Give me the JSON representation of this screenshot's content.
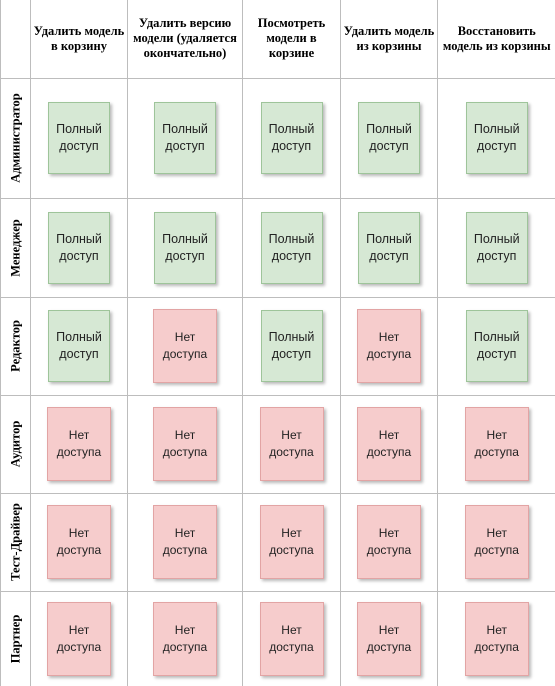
{
  "columns": [
    "Удалить модель в корзину",
    "Удалить версию модели (удаляется окончательно)",
    "Посмотреть модели в корзине",
    "Удалить модель из корзины",
    "Восстановить модель из корзины"
  ],
  "labels": {
    "full": "Полный\nдоступ",
    "none": "Нет\nдоступа"
  },
  "rows": [
    {
      "role": "Администратор",
      "access": [
        "full",
        "full",
        "full",
        "full",
        "full"
      ]
    },
    {
      "role": "Менеджер",
      "access": [
        "full",
        "full",
        "full",
        "full",
        "full"
      ]
    },
    {
      "role": "Редактор",
      "access": [
        "full",
        "none",
        "full",
        "none",
        "full"
      ]
    },
    {
      "role": "Аудитор",
      "access": [
        "none",
        "none",
        "none",
        "none",
        "none"
      ]
    },
    {
      "role": "Тест-Драйвер",
      "access": [
        "none",
        "none",
        "none",
        "none",
        "none"
      ]
    },
    {
      "role": "Партнер",
      "access": [
        "none",
        "none",
        "none",
        "none",
        "none"
      ]
    }
  ],
  "colors": {
    "full_fill": "#d6e8d4",
    "none_fill": "#f6cccc"
  }
}
